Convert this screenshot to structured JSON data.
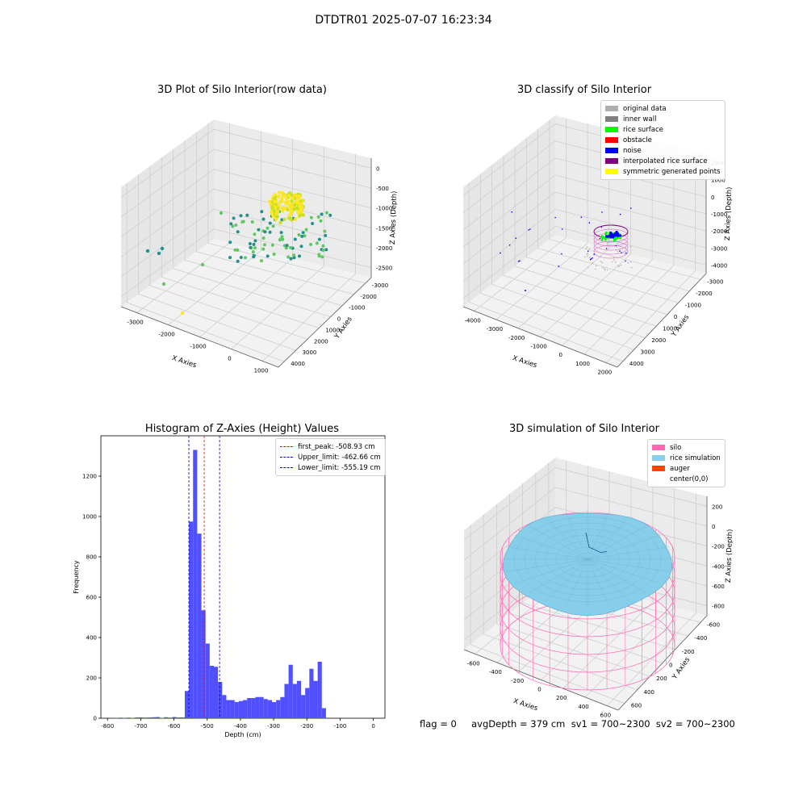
{
  "suptitle": "DTDTR01 2025-07-07 16:23:34",
  "footer": "flag = 0     avgDepth = 379 cm  sv1 = 700~2300  sv2 = 700~2300",
  "chart_data": [
    {
      "type": "scatter",
      "title": "3D Plot of Silo Interior(row data)",
      "xlabel": "X Axies",
      "ylabel": "Y Axies",
      "zlabel": "Z Axies (Depth)",
      "x_ticks": [
        "-3000",
        "-2000",
        "-1000",
        "0",
        "1000"
      ],
      "y_ticks": [
        "-3000",
        "-2000",
        "-1000",
        "0",
        "1000",
        "2000",
        "3000",
        "4000"
      ],
      "z_ticks": [
        "0",
        "-500",
        "-1000",
        "-1500",
        "-2000",
        "-2500"
      ],
      "colormap": [
        "#440154",
        "#3b528b",
        "#21918c",
        "#5ec962",
        "#fde725"
      ]
    },
    {
      "type": "scatter",
      "title": "3D classify of Silo Interior",
      "xlabel": "X Axies",
      "ylabel": "Y Axies",
      "zlabel": "Z Axies (Depth)",
      "x_ticks": [
        "-4000",
        "-3000",
        "-2000",
        "-1000",
        "0",
        "1000",
        "2000"
      ],
      "y_ticks": [
        "-3000",
        "-2000",
        "-1000",
        "0",
        "1000",
        "2000",
        "3000",
        "4000"
      ],
      "z_ticks": [
        "2000",
        "1000",
        "0",
        "-1000",
        "-2000",
        "-3000",
        "-4000"
      ],
      "legend_position": "upper-right",
      "legend": [
        {
          "label": "original data",
          "color": "#b0b0b0"
        },
        {
          "label": "inner wall",
          "color": "#808080"
        },
        {
          "label": "rice surface",
          "color": "#00ff00"
        },
        {
          "label": "obstacle",
          "color": "#ff0000"
        },
        {
          "label": "noise",
          "color": "#0000ff"
        },
        {
          "label": "interpolated rice surface",
          "color": "#800080"
        },
        {
          "label": "symmetric generated points",
          "color": "#ffff00"
        }
      ]
    },
    {
      "type": "bar",
      "title": "Histogram of Z-Axies (Height) Values",
      "xlabel": "Depth (cm)",
      "ylabel": "Frequency",
      "xlim": [
        -800,
        0
      ],
      "ylim": [
        0,
        1400
      ],
      "x_ticks": [
        "-800",
        "-700",
        "-600",
        "-500",
        "-400",
        "-300",
        "-200",
        "-100",
        "0"
      ],
      "y_ticks": [
        "0",
        "200",
        "400",
        "600",
        "800",
        "1000",
        "1200"
      ],
      "bin_start": -780,
      "bin_width": 12.5,
      "values": [
        2,
        3,
        2,
        3,
        2,
        4,
        4,
        3,
        4,
        5,
        6,
        2,
        5,
        3,
        6,
        4,
        4,
        135,
        975,
        1330,
        915,
        535,
        370,
        260,
        255,
        180,
        115,
        90,
        90,
        80,
        85,
        90,
        100,
        100,
        105,
        105,
        95,
        90,
        80,
        90,
        105,
        170,
        265,
        170,
        185,
        115,
        150,
        245,
        185,
        280,
        50
      ],
      "bar_color": "#5050ff",
      "lines": [
        {
          "label": "first_peak: -508.93 cm",
          "x": -508.93,
          "color": "#ff0000"
        },
        {
          "label": "Upper_limit: -462.66 cm",
          "x": -462.66,
          "color": "#0000aa"
        },
        {
          "label": "Lower_limit: -555.19 cm",
          "x": -555.19,
          "color": "#0000aa"
        }
      ],
      "legend_position": "upper-right"
    },
    {
      "type": "scatter",
      "title": "3D simulation of Silo Interior",
      "xlabel": "X Axies",
      "ylabel": "Y Axies",
      "zlabel": "Z Axies (Depth)",
      "x_ticks": [
        "-600",
        "-400",
        "-200",
        "0",
        "200",
        "400",
        "600"
      ],
      "y_ticks": [
        "-600",
        "-400",
        "-200",
        "0",
        "200",
        "400",
        "600"
      ],
      "z_ticks": [
        "200",
        "0",
        "-200",
        "-400",
        "-600",
        "-800"
      ],
      "legend_position": "upper-right",
      "legend": [
        {
          "label": "silo",
          "color": "#ff69b4"
        },
        {
          "label": "rice simulation",
          "color": "#87ceeb"
        },
        {
          "label": "auger",
          "color": "#ff4500"
        },
        {
          "label": "center(0,0)",
          "color": "#ffffff"
        }
      ]
    }
  ]
}
